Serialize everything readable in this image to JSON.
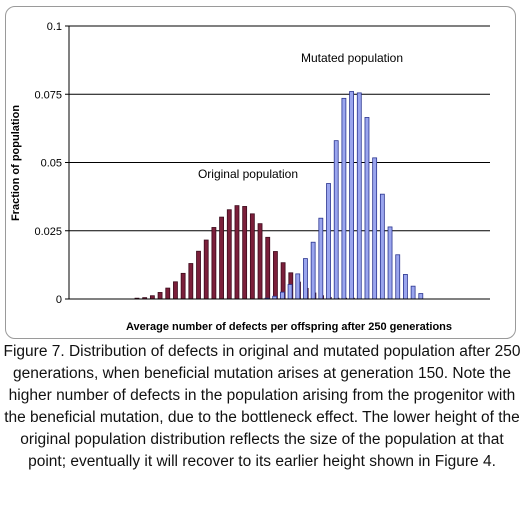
{
  "chart_data": {
    "type": "bar",
    "ylabel": "Fraction of population",
    "xlabel": "Average number of defects per offspring after 250 generations",
    "ylim": [
      0,
      0.1
    ],
    "yticks": [
      "0",
      "0.025",
      "0.05",
      "0.075",
      "0.1"
    ],
    "grid": true,
    "annotations": [
      "Mutated population",
      "Original population"
    ],
    "series": [
      {
        "name": "Original population",
        "color": "#7b1f3a",
        "values": [
          0.0003,
          0.0005,
          0.0012,
          0.0024,
          0.004,
          0.0063,
          0.0094,
          0.013,
          0.0175,
          0.0216,
          0.0262,
          0.03,
          0.0327,
          0.0342,
          0.0339,
          0.0312,
          0.0276,
          0.0226,
          0.0174,
          0.0133,
          0.0096,
          0.0062,
          0.0039,
          0.0022,
          0.0012,
          0.0006,
          0.0003,
          0.0001,
          0.0001
        ]
      },
      {
        "name": "Mutated population",
        "color": "#9aa5ee",
        "values": [
          0.0003,
          0.001,
          0.0025,
          0.0053,
          0.0092,
          0.0148,
          0.0208,
          0.0296,
          0.0423,
          0.058,
          0.0735,
          0.076,
          0.0755,
          0.0665,
          0.0517,
          0.0384,
          0.0264,
          0.0162,
          0.009,
          0.0047,
          0.002
        ]
      }
    ]
  },
  "caption": "Figure 7. Distribution of defects in original and mutated population after 250 generations, when beneficial mutation arises at generation 150. Note the higher number of defects in the population arising from the progenitor with the beneficial mutation, due to the bottleneck effect. The lower height of the original population distribution reflects the size of the population at that point; eventually it will recover to its earlier height shown in Figure 4."
}
